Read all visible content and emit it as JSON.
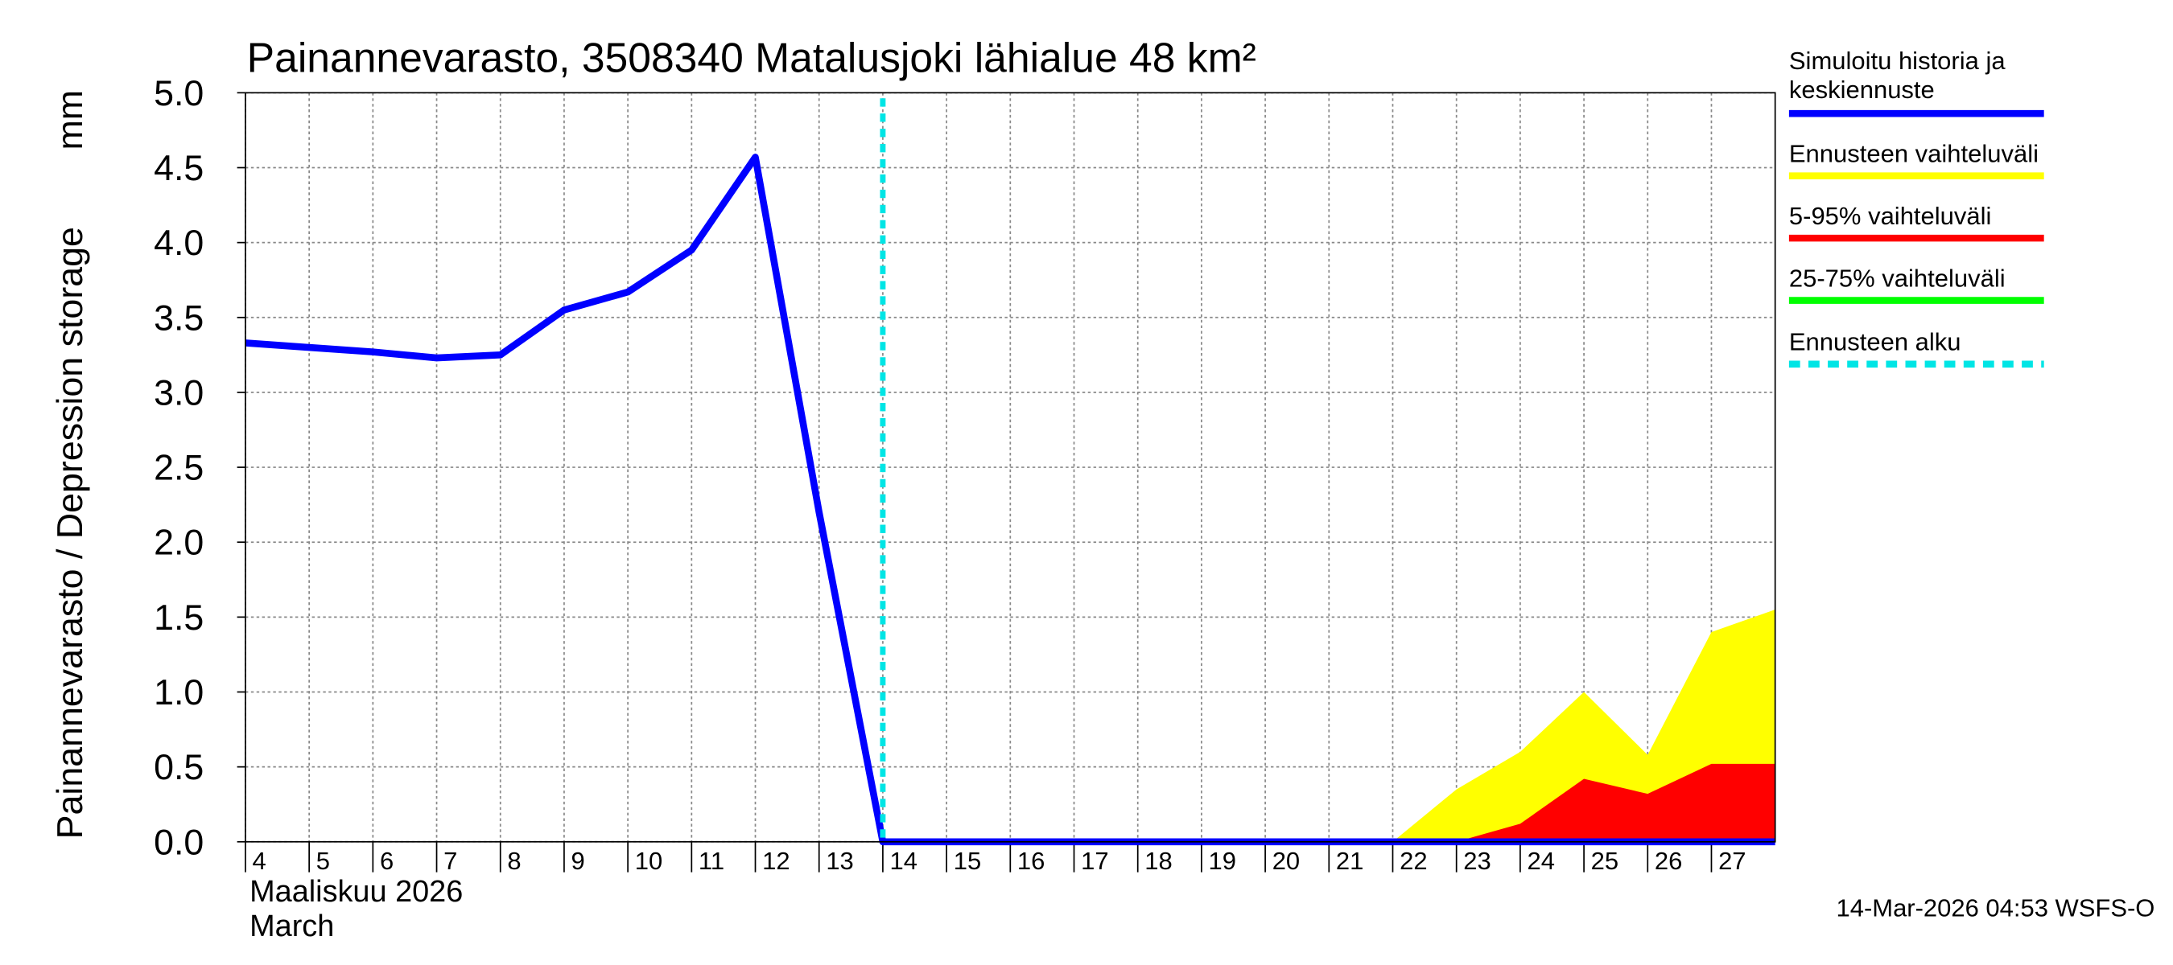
{
  "chart_data": {
    "type": "line",
    "title": "Painannevarasto, 3508340 Matalusjoki lähialue 48 km²",
    "y_label": "Painannevarasto / Depression storage",
    "y_unit": "mm",
    "x_label": [
      "Maaliskuu 2026",
      "March"
    ],
    "footer": "14-Mar-2026 04:53 WSFS-O",
    "x": [
      4,
      5,
      6,
      7,
      8,
      9,
      10,
      11,
      12,
      13,
      14,
      15,
      16,
      17,
      18,
      19,
      20,
      21,
      22,
      23,
      24,
      25,
      26,
      27,
      28
    ],
    "xlim": [
      4,
      28
    ],
    "xticks": [
      4,
      5,
      6,
      7,
      8,
      9,
      10,
      11,
      12,
      13,
      14,
      15,
      16,
      17,
      18,
      19,
      20,
      21,
      22,
      23,
      24,
      25,
      26,
      27
    ],
    "ylim": [
      0,
      5
    ],
    "yticks": [
      {
        "value": 0,
        "label": "0.0"
      },
      {
        "value": 0.5,
        "label": "0.5"
      },
      {
        "value": 1,
        "label": "1.0"
      },
      {
        "value": 1.5,
        "label": "1.5"
      },
      {
        "value": 2,
        "label": "2.0"
      },
      {
        "value": 2.5,
        "label": "2.5"
      },
      {
        "value": 3,
        "label": "3.0"
      },
      {
        "value": 3.5,
        "label": "3.5"
      },
      {
        "value": 4,
        "label": "4.0"
      },
      {
        "value": 4.5,
        "label": "4.5"
      },
      {
        "value": 5,
        "label": "5.0"
      }
    ],
    "grid": true,
    "series": [
      {
        "name": "Simuloitu historia ja keskiennuste",
        "color": "#0000ff",
        "kind": "line",
        "values": [
          3.33,
          3.3,
          3.27,
          3.23,
          3.25,
          3.55,
          3.67,
          3.95,
          4.57,
          2.2,
          0,
          0,
          0,
          0,
          0,
          0,
          0,
          0,
          0,
          0,
          0,
          0,
          0,
          0,
          0
        ]
      },
      {
        "name": "Ennusteen vaihteluväli",
        "color": "#ffff00",
        "kind": "area",
        "values": [
          null,
          null,
          null,
          null,
          null,
          null,
          null,
          null,
          null,
          null,
          null,
          null,
          null,
          null,
          null,
          null,
          null,
          null,
          0,
          0.35,
          0.6,
          1.0,
          0.58,
          1.4,
          1.55
        ]
      },
      {
        "name": "5-95% vaihteluväli",
        "color": "#ff0000",
        "kind": "area",
        "values": [
          null,
          null,
          null,
          null,
          null,
          null,
          null,
          null,
          null,
          null,
          null,
          null,
          null,
          null,
          null,
          null,
          null,
          null,
          null,
          0,
          0.12,
          0.42,
          0.32,
          0.52,
          0.52
        ]
      },
      {
        "name": "25-75% vaihteluväli",
        "color": "#00ff00",
        "kind": "area",
        "values": [
          null,
          null,
          null,
          null,
          null,
          null,
          null,
          null,
          null,
          null,
          null,
          null,
          null,
          null,
          null,
          null,
          null,
          null,
          null,
          0,
          0,
          0,
          0,
          0,
          0
        ]
      }
    ],
    "forecast_start": {
      "name": "Ennusteen alku",
      "color": "#00e5e5",
      "x": 14
    }
  }
}
